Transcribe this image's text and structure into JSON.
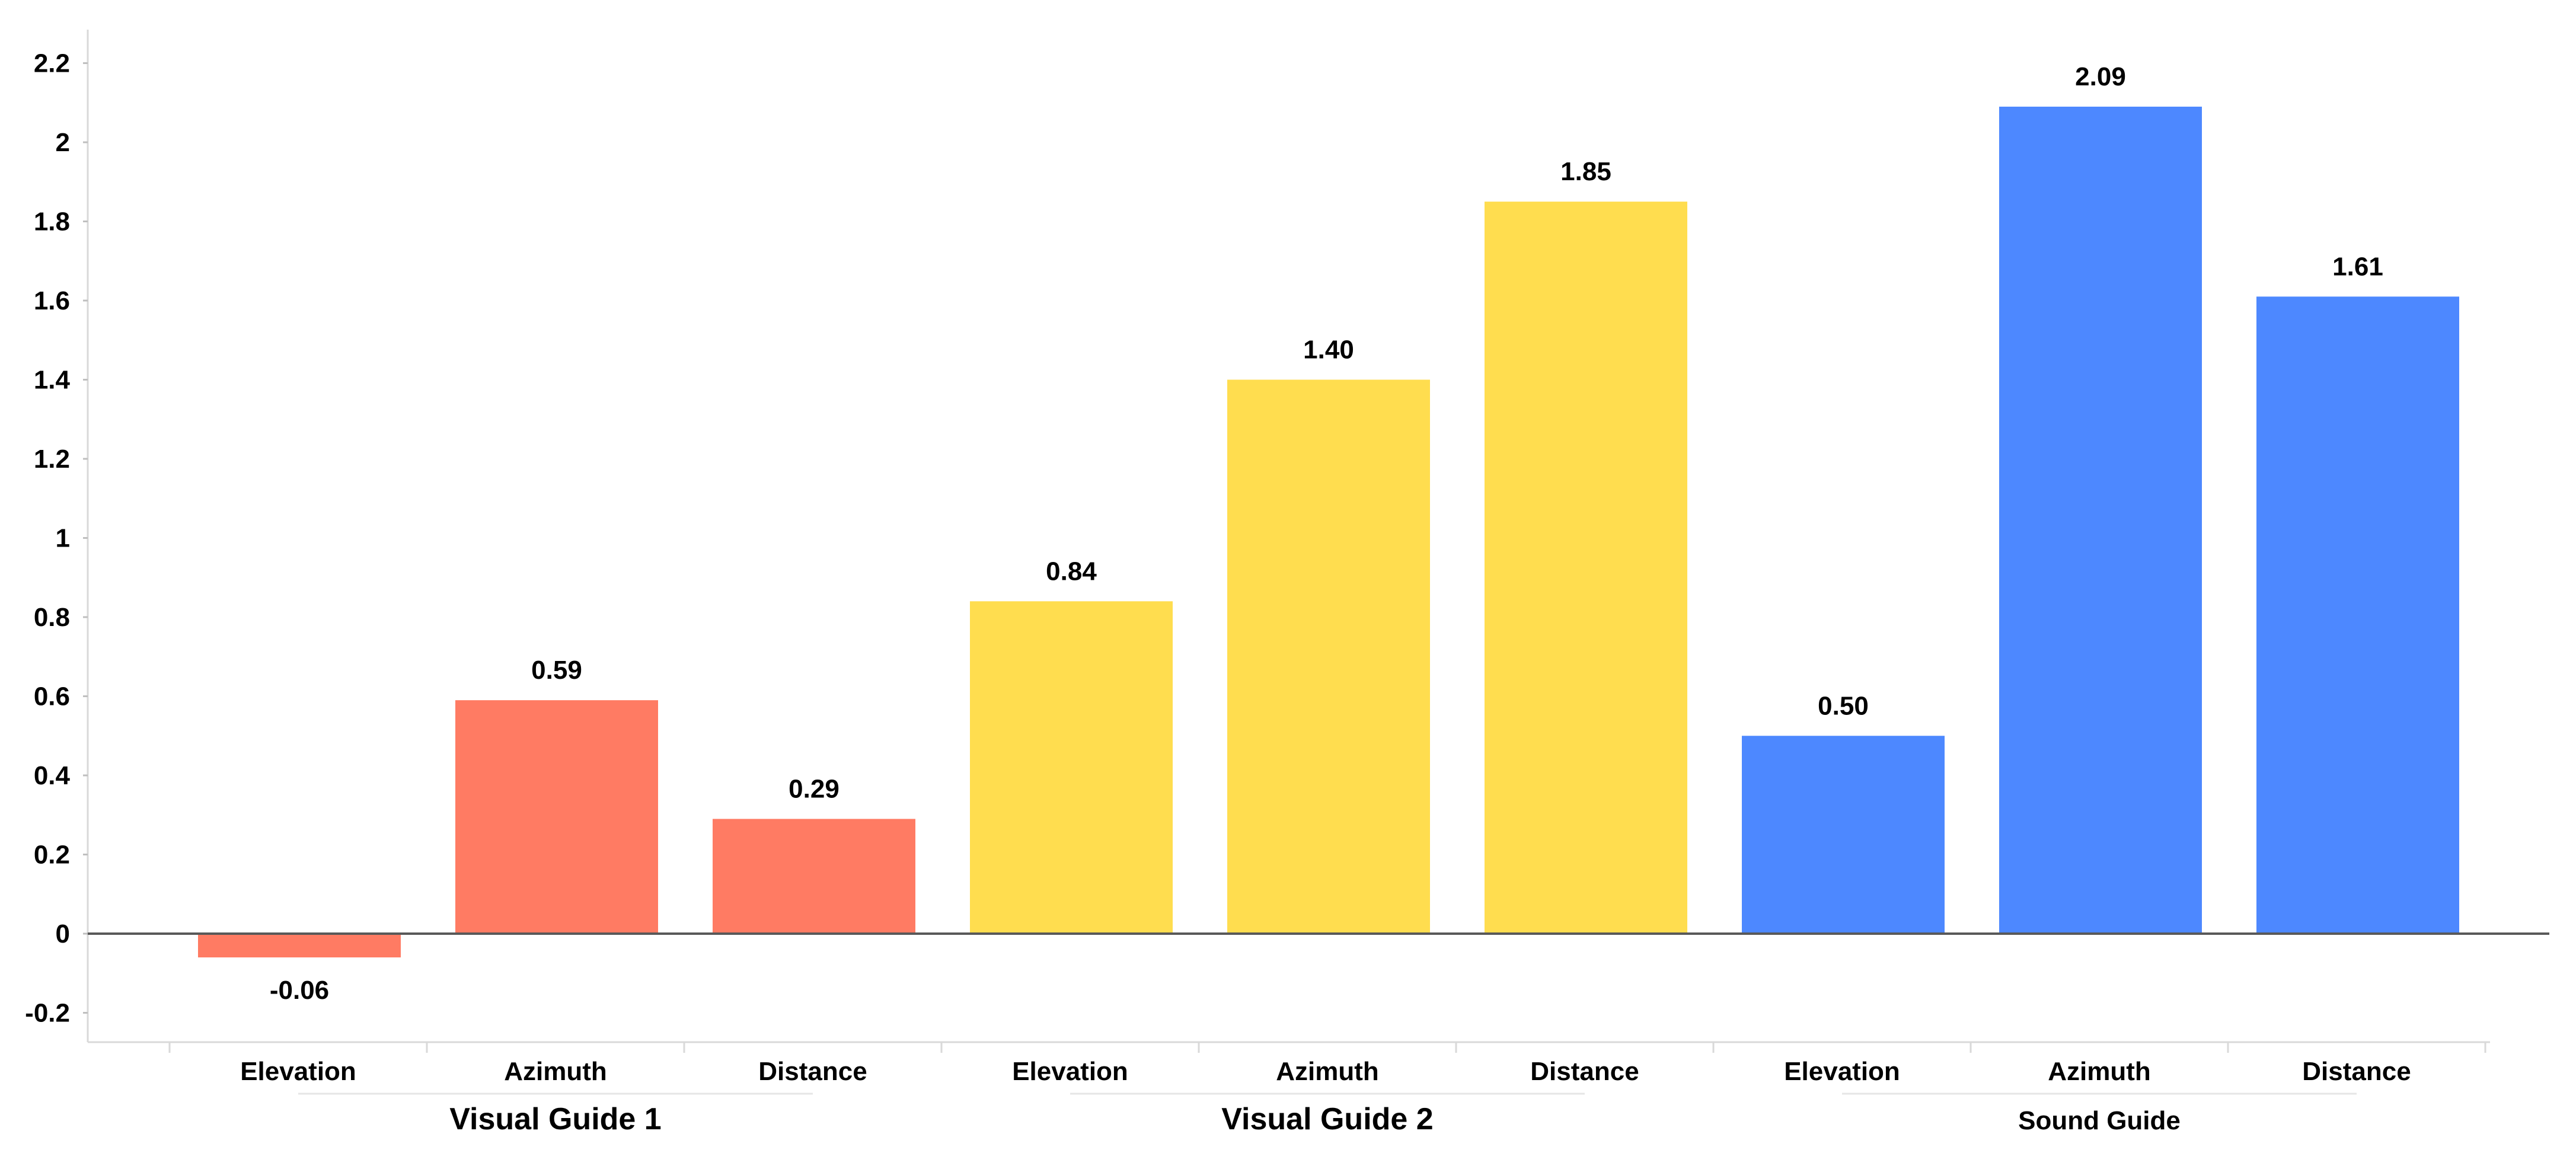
{
  "chart_data": {
    "type": "bar",
    "title": "",
    "xlabel": "",
    "ylabel": "",
    "ylim": [
      -0.27,
      2.3
    ],
    "yticks": [
      -0.2,
      0,
      0.2,
      0.4,
      0.6,
      0.8,
      1,
      1.2,
      1.4,
      1.6,
      1.8,
      2,
      2.2
    ],
    "ytick_labels": [
      "-0.2",
      "0",
      "0.2",
      "0.4",
      "0.6",
      "0.8",
      "1",
      "1.2",
      "1.4",
      "1.6",
      "1.8",
      "2",
      "2.2"
    ],
    "grid": false,
    "legend": "none",
    "groups": [
      {
        "name": "Visual Guide 1",
        "color": "#FF7B63",
        "categories": [
          "Elevation",
          "Azimuth",
          "Distance"
        ],
        "values": [
          -0.06,
          0.59,
          0.29
        ],
        "labels": [
          "-0.06",
          "0.59",
          "0.29"
        ]
      },
      {
        "name": "Visual Guide 2",
        "color": "#FFDD4F",
        "categories": [
          "Elevation",
          "Azimuth",
          "Distance"
        ],
        "values": [
          0.84,
          1.4,
          1.85
        ],
        "labels": [
          "0.84",
          "1.40",
          "1.85"
        ]
      },
      {
        "name": "Sound Guide",
        "color": "#4D88FF",
        "categories": [
          "Elevation",
          "Azimuth",
          "Distance"
        ],
        "values": [
          0.5,
          2.09,
          1.61
        ],
        "labels": [
          "0.50",
          "2.09",
          "1.61"
        ]
      }
    ]
  }
}
